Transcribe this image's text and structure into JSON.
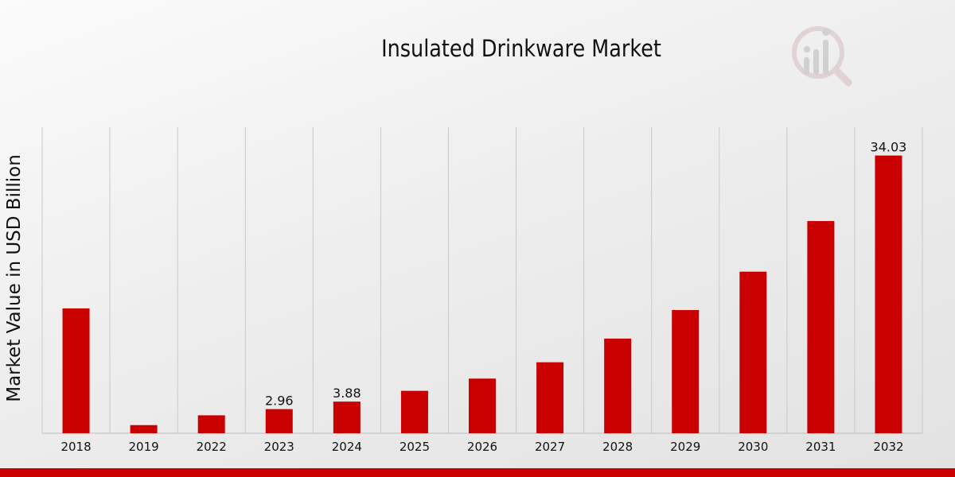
{
  "chart_data": {
    "type": "bar",
    "title": "Insulated Drinkware Market",
    "xlabel": "",
    "ylabel": "Market Value in USD Billion",
    "categories": [
      "2018",
      "2019",
      "2022",
      "2023",
      "2024",
      "2025",
      "2026",
      "2027",
      "2028",
      "2029",
      "2030",
      "2031",
      "2032"
    ],
    "values": [
      15.3,
      1.0,
      2.2,
      2.96,
      3.88,
      5.2,
      6.7,
      8.7,
      11.6,
      15.1,
      19.8,
      26.0,
      34.03
    ],
    "data_labels": [
      {
        "category": "2023",
        "text": "2.96"
      },
      {
        "category": "2024",
        "text": "3.88"
      },
      {
        "category": "2032",
        "text": "34.03"
      }
    ],
    "ylim": [
      0,
      37.5
    ],
    "grid": "vertical",
    "legend": "none"
  },
  "colors": {
    "bar": "#c80000",
    "grid": "#c9c9c9",
    "axis": "#bdbdbd",
    "text": "#111111",
    "footer": "#c80000"
  }
}
